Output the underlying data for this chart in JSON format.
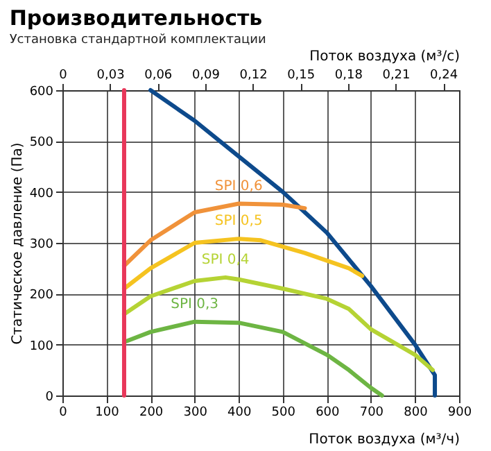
{
  "chart_data": {
    "type": "line",
    "title": "Производительность",
    "subtitle": "Установка стандартной комплектации",
    "xlabel": "Поток воздуха (м³/ч)",
    "ylabel": "Статическое давление (Па)",
    "x2label": "Поток воздуха (м³/с)",
    "xlim": [
      0,
      900
    ],
    "xticks": [
      0,
      100,
      200,
      300,
      400,
      500,
      600,
      700,
      800,
      900
    ],
    "ylim": [
      0,
      600
    ],
    "yticks": [
      0,
      100,
      200,
      300,
      400,
      500,
      600
    ],
    "x2lim": [
      0,
      0.25
    ],
    "x2ticks": [
      {
        "value": 0,
        "label": "0"
      },
      {
        "value": 0.03,
        "label": "0,03"
      },
      {
        "value": 0.06,
        "label": "0,06"
      },
      {
        "value": 0.09,
        "label": "0,09"
      },
      {
        "value": 0.12,
        "label": "0,12"
      },
      {
        "value": 0.15,
        "label": "0,15"
      },
      {
        "value": 0.18,
        "label": "0,18"
      },
      {
        "value": 0.21,
        "label": "0,21"
      },
      {
        "value": 0.24,
        "label": "0,24"
      }
    ],
    "grid": true,
    "marker": "none",
    "line_style": "solid",
    "series": [
      {
        "color": "#e8375a",
        "x": [
          140,
          140
        ],
        "values": [
          0,
          600
        ]
      },
      {
        "color": "#0d4a8c",
        "x": [
          200,
          300,
          400,
          500,
          550,
          600,
          700,
          800,
          845,
          845
        ],
        "values": [
          600,
          540,
          470,
          400,
          360,
          320,
          215,
          100,
          40,
          0
        ]
      },
      {
        "name": "SPI 0,6",
        "color": "#f0923a",
        "x": [
          140,
          200,
          300,
          400,
          500,
          550
        ],
        "values": [
          255,
          305,
          360,
          377,
          375,
          368
        ]
      },
      {
        "name": "SPI 0,5",
        "color": "#f5c320",
        "x": [
          140,
          200,
          300,
          400,
          450,
          550,
          650,
          680
        ],
        "values": [
          210,
          250,
          300,
          308,
          305,
          280,
          250,
          235
        ]
      },
      {
        "name": "SPI 0,4",
        "color": "#b5d334",
        "x": [
          140,
          200,
          300,
          370,
          400,
          500,
          600,
          650,
          700,
          800,
          840
        ],
        "values": [
          160,
          195,
          225,
          232,
          228,
          210,
          190,
          170,
          130,
          80,
          50
        ]
      },
      {
        "name": "SPI 0,3",
        "color": "#6db543",
        "x": [
          140,
          200,
          300,
          400,
          500,
          600,
          650,
          700,
          725
        ],
        "values": [
          105,
          125,
          145,
          143,
          125,
          80,
          50,
          15,
          0
        ]
      }
    ]
  }
}
